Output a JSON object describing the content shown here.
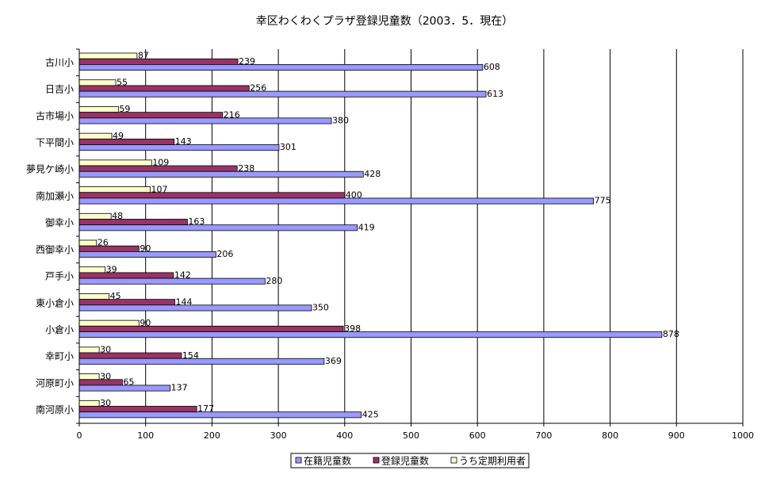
{
  "chart_data": {
    "type": "bar",
    "orientation": "horizontal",
    "title": "幸区わくわくプラザ登録児童数（2003．5．現在）",
    "categories": [
      "古川小",
      "日吉小",
      "古市場小",
      "下平間小",
      "夢見ケ崎小",
      "南加瀬小",
      "御幸小",
      "西御幸小",
      "戸手小",
      "東小倉小",
      "小倉小",
      "幸町小",
      "河原町小",
      "南河原小"
    ],
    "series": [
      {
        "name": "在籍児童数",
        "color": "#9999ff",
        "values": [
          608,
          613,
          380,
          301,
          428,
          775,
          419,
          206,
          280,
          350,
          878,
          369,
          137,
          425
        ]
      },
      {
        "name": "登録児童数",
        "color": "#993366",
        "values": [
          239,
          256,
          216,
          143,
          238,
          400,
          163,
          90,
          142,
          144,
          398,
          154,
          65,
          177
        ]
      },
      {
        "name": "うち定期利用者",
        "color": "#ffffcc",
        "values": [
          87,
          55,
          59,
          49,
          109,
          107,
          48,
          26,
          39,
          45,
          90,
          30,
          30,
          30
        ]
      }
    ],
    "xlim": [
      0,
      1000
    ],
    "xticks": [
      0,
      100,
      200,
      300,
      400,
      500,
      600,
      700,
      800,
      900,
      1000
    ],
    "grid": true,
    "legend": "bottom"
  }
}
